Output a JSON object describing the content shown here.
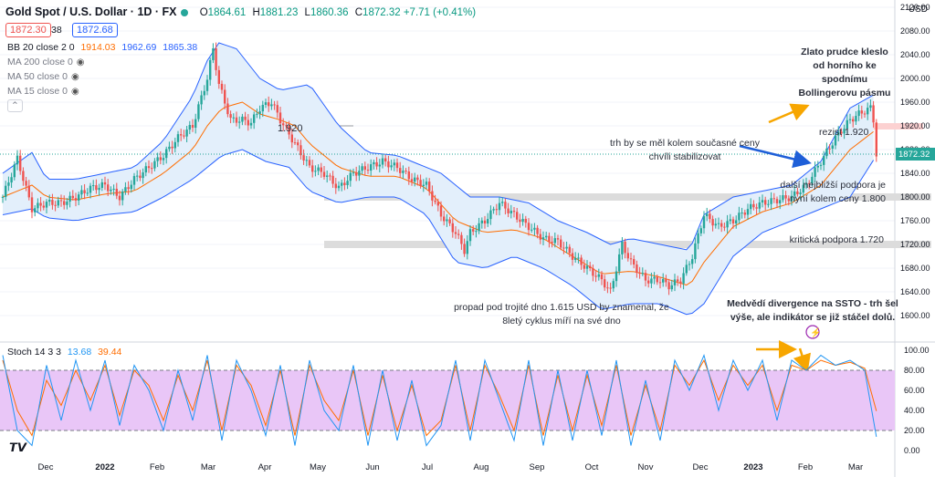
{
  "header": {
    "symbol": "Gold Spot / U.S. Dollar · 1D · FX",
    "o_label": "O",
    "o_value": "1864.61",
    "h_label": "H",
    "h_value": "1881.23",
    "l_label": "L",
    "l_value": "1860.36",
    "c_label": "C",
    "c_value": "1872.32",
    "change": "+7.71 (+0.41%)",
    "bid": "1872.30",
    "spread": "38",
    "ask": "1872.68",
    "currency": "USD"
  },
  "indicators": {
    "bb_label": "BB 20 close 2 0",
    "bb_basis": "1914.03",
    "bb_upper": "1962.69",
    "bb_lower": "1865.38",
    "ma200": "MA 200 close 0",
    "ma50": "MA 50 close 0",
    "ma15": "MA 15 close 0",
    "stoch_label": "Stoch 14 3 3",
    "stoch_k": "13.68",
    "stoch_d": "39.44"
  },
  "annotations": {
    "top_right": [
      "Zlato prudce kleslo",
      "od horního ke",
      "spodnímu",
      "Bollingerovu pásmu"
    ],
    "resistance": "rezist 1.920",
    "stabilize": [
      "trh by se měl kolem současné ceny",
      "chvíli stabilizovat"
    ],
    "next_support": [
      "další nejbližší podpora je",
      "nyní kolem ceny 1.800"
    ],
    "critical_support": "kritická podpora 1.720",
    "triple_bottom": [
      "propad pod trojité dno 1.615 USD by znamenal, že",
      "8letý cyklus míří na své dno"
    ],
    "divergence": [
      "Medvědí divergence na SSTO - trh šel",
      "výše, ale indikátor se již stáčel dolů."
    ],
    "level_1920": "1.920"
  },
  "colors": {
    "up": "#26a69a",
    "down": "#ef5350",
    "bb_band": "#2962ff",
    "bb_basis": "#ff6d00",
    "bb_fill": "#e3effb",
    "stoch_k": "#2196f3",
    "stoch_d": "#ff6d00",
    "stoch_fill": "#e9c6f7",
    "zone": "#dcdcdc",
    "resist_zone": "#fcd1d1",
    "arrow_orange": "#f7a600",
    "arrow_blue": "#1e5fd8"
  },
  "chart_data": {
    "type": "candlestick",
    "ylim": [
      1560,
      2120
    ],
    "yticks": [
      2120,
      2080,
      2040,
      2000,
      1960,
      1920,
      1880,
      1840,
      1800,
      1760,
      1720,
      1680,
      1640,
      1600
    ],
    "ytick_labels": [
      "2120.00",
      "2080.00",
      "2040.00",
      "2000.00",
      "1960.00",
      "1920.00",
      "1880.00",
      "1840.00",
      "1800.00",
      "1760.00",
      "1720.00",
      "1680.00",
      "1640.00",
      "1600.00"
    ],
    "x_labels": [
      "Dec",
      "2022",
      "Feb",
      "Mar",
      "Apr",
      "May",
      "Jun",
      "Jul",
      "Aug",
      "Sep",
      "Oct",
      "Nov",
      "Dec",
      "2023",
      "Feb",
      "Mar"
    ],
    "x_label_bold": [
      "2022",
      "2023"
    ],
    "last_price": 1872.32,
    "last_price_label": "1872.32",
    "close_path": [
      [
        0,
        1800
      ],
      [
        5,
        1865
      ],
      [
        10,
        1780
      ],
      [
        15,
        1790
      ],
      [
        20,
        1790
      ],
      [
        25,
        1800
      ],
      [
        30,
        1815
      ],
      [
        35,
        1820
      ],
      [
        40,
        1800
      ],
      [
        45,
        1830
      ],
      [
        50,
        1850
      ],
      [
        55,
        1870
      ],
      [
        60,
        1900
      ],
      [
        65,
        1920
      ],
      [
        70,
        2000
      ],
      [
        72,
        2050
      ],
      [
        74,
        1990
      ],
      [
        78,
        1930
      ],
      [
        82,
        1930
      ],
      [
        85,
        1925
      ],
      [
        88,
        1950
      ],
      [
        92,
        1960
      ],
      [
        95,
        1930
      ],
      [
        100,
        1890
      ],
      [
        105,
        1850
      ],
      [
        110,
        1840
      ],
      [
        115,
        1815
      ],
      [
        120,
        1840
      ],
      [
        125,
        1850
      ],
      [
        130,
        1860
      ],
      [
        135,
        1850
      ],
      [
        140,
        1830
      ],
      [
        145,
        1820
      ],
      [
        150,
        1770
      ],
      [
        155,
        1740
      ],
      [
        158,
        1710
      ],
      [
        160,
        1740
      ],
      [
        165,
        1760
      ],
      [
        170,
        1790
      ],
      [
        175,
        1770
      ],
      [
        180,
        1750
      ],
      [
        185,
        1730
      ],
      [
        190,
        1725
      ],
      [
        195,
        1700
      ],
      [
        200,
        1680
      ],
      [
        205,
        1660
      ],
      [
        208,
        1640
      ],
      [
        212,
        1720
      ],
      [
        215,
        1690
      ],
      [
        220,
        1660
      ],
      [
        225,
        1660
      ],
      [
        228,
        1650
      ],
      [
        232,
        1660
      ],
      [
        236,
        1700
      ],
      [
        240,
        1770
      ],
      [
        245,
        1750
      ],
      [
        250,
        1760
      ],
      [
        255,
        1780
      ],
      [
        260,
        1790
      ],
      [
        265,
        1795
      ],
      [
        270,
        1800
      ],
      [
        275,
        1820
      ],
      [
        280,
        1860
      ],
      [
        285,
        1900
      ],
      [
        290,
        1930
      ],
      [
        293,
        1940
      ],
      [
        295,
        1945
      ],
      [
        297,
        1950
      ],
      [
        298,
        1930
      ],
      [
        299,
        1872
      ]
    ],
    "bb_upper_path": [
      [
        0,
        1840
      ],
      [
        10,
        1875
      ],
      [
        15,
        1830
      ],
      [
        25,
        1830
      ],
      [
        35,
        1840
      ],
      [
        45,
        1850
      ],
      [
        55,
        1895
      ],
      [
        65,
        1970
      ],
      [
        70,
        2030
      ],
      [
        74,
        2060
      ],
      [
        80,
        2050
      ],
      [
        88,
        2000
      ],
      [
        95,
        1980
      ],
      [
        105,
        1990
      ],
      [
        115,
        1920
      ],
      [
        125,
        1875
      ],
      [
        135,
        1870
      ],
      [
        145,
        1850
      ],
      [
        150,
        1840
      ],
      [
        160,
        1800
      ],
      [
        170,
        1800
      ],
      [
        180,
        1790
      ],
      [
        190,
        1760
      ],
      [
        200,
        1740
      ],
      [
        208,
        1720
      ],
      [
        215,
        1730
      ],
      [
        225,
        1720
      ],
      [
        235,
        1710
      ],
      [
        240,
        1770
      ],
      [
        250,
        1800
      ],
      [
        260,
        1810
      ],
      [
        270,
        1820
      ],
      [
        280,
        1860
      ],
      [
        290,
        1950
      ],
      [
        299,
        1975
      ]
    ],
    "bb_lower_path": [
      [
        0,
        1770
      ],
      [
        10,
        1780
      ],
      [
        15,
        1765
      ],
      [
        25,
        1760
      ],
      [
        35,
        1770
      ],
      [
        45,
        1775
      ],
      [
        55,
        1800
      ],
      [
        65,
        1830
      ],
      [
        70,
        1850
      ],
      [
        75,
        1870
      ],
      [
        82,
        1880
      ],
      [
        90,
        1860
      ],
      [
        98,
        1850
      ],
      [
        105,
        1810
      ],
      [
        115,
        1790
      ],
      [
        125,
        1800
      ],
      [
        135,
        1800
      ],
      [
        145,
        1770
      ],
      [
        155,
        1690
      ],
      [
        165,
        1680
      ],
      [
        175,
        1700
      ],
      [
        185,
        1680
      ],
      [
        195,
        1650
      ],
      [
        205,
        1610
      ],
      [
        215,
        1620
      ],
      [
        225,
        1620
      ],
      [
        235,
        1600
      ],
      [
        240,
        1620
      ],
      [
        250,
        1700
      ],
      [
        260,
        1740
      ],
      [
        270,
        1760
      ],
      [
        280,
        1780
      ],
      [
        290,
        1800
      ],
      [
        299,
        1870
      ]
    ],
    "bb_basis_path": [
      [
        0,
        1800
      ],
      [
        10,
        1820
      ],
      [
        15,
        1800
      ],
      [
        25,
        1795
      ],
      [
        35,
        1805
      ],
      [
        45,
        1810
      ],
      [
        55,
        1840
      ],
      [
        65,
        1880
      ],
      [
        70,
        1920
      ],
      [
        75,
        1950
      ],
      [
        82,
        1960
      ],
      [
        88,
        1940
      ],
      [
        95,
        1930
      ],
      [
        100,
        1920
      ],
      [
        105,
        1890
      ],
      [
        115,
        1850
      ],
      [
        125,
        1835
      ],
      [
        135,
        1835
      ],
      [
        145,
        1815
      ],
      [
        155,
        1760
      ],
      [
        165,
        1740
      ],
      [
        175,
        1745
      ],
      [
        185,
        1730
      ],
      [
        195,
        1700
      ],
      [
        205,
        1670
      ],
      [
        215,
        1675
      ],
      [
        225,
        1665
      ],
      [
        235,
        1650
      ],
      [
        240,
        1690
      ],
      [
        250,
        1750
      ],
      [
        260,
        1775
      ],
      [
        270,
        1790
      ],
      [
        280,
        1820
      ],
      [
        290,
        1880
      ],
      [
        299,
        1914
      ]
    ],
    "stoch_k_path": [
      [
        0,
        95
      ],
      [
        5,
        20
      ],
      [
        10,
        5
      ],
      [
        15,
        85
      ],
      [
        20,
        30
      ],
      [
        25,
        90
      ],
      [
        30,
        40
      ],
      [
        35,
        90
      ],
      [
        40,
        25
      ],
      [
        45,
        85
      ],
      [
        50,
        60
      ],
      [
        55,
        20
      ],
      [
        60,
        80
      ],
      [
        65,
        30
      ],
      [
        70,
        95
      ],
      [
        75,
        10
      ],
      [
        80,
        90
      ],
      [
        85,
        60
      ],
      [
        90,
        15
      ],
      [
        95,
        85
      ],
      [
        100,
        5
      ],
      [
        105,
        90
      ],
      [
        110,
        40
      ],
      [
        115,
        20
      ],
      [
        120,
        85
      ],
      [
        125,
        5
      ],
      [
        130,
        80
      ],
      [
        135,
        10
      ],
      [
        140,
        70
      ],
      [
        145,
        5
      ],
      [
        150,
        25
      ],
      [
        155,
        90
      ],
      [
        160,
        10
      ],
      [
        165,
        90
      ],
      [
        170,
        50
      ],
      [
        175,
        10
      ],
      [
        180,
        90
      ],
      [
        185,
        5
      ],
      [
        190,
        80
      ],
      [
        195,
        10
      ],
      [
        200,
        80
      ],
      [
        205,
        15
      ],
      [
        210,
        90
      ],
      [
        215,
        5
      ],
      [
        220,
        70
      ],
      [
        225,
        10
      ],
      [
        230,
        90
      ],
      [
        235,
        60
      ],
      [
        240,
        95
      ],
      [
        245,
        40
      ],
      [
        250,
        90
      ],
      [
        255,
        60
      ],
      [
        260,
        90
      ],
      [
        265,
        30
      ],
      [
        270,
        90
      ],
      [
        275,
        80
      ],
      [
        280,
        95
      ],
      [
        285,
        85
      ],
      [
        290,
        90
      ],
      [
        295,
        80
      ],
      [
        299,
        13.68
      ]
    ],
    "stoch_d_path": [
      [
        0,
        90
      ],
      [
        5,
        40
      ],
      [
        10,
        15
      ],
      [
        15,
        70
      ],
      [
        20,
        45
      ],
      [
        25,
        80
      ],
      [
        30,
        50
      ],
      [
        35,
        85
      ],
      [
        40,
        35
      ],
      [
        45,
        80
      ],
      [
        50,
        65
      ],
      [
        55,
        30
      ],
      [
        60,
        75
      ],
      [
        65,
        40
      ],
      [
        70,
        90
      ],
      [
        75,
        20
      ],
      [
        80,
        85
      ],
      [
        85,
        65
      ],
      [
        90,
        25
      ],
      [
        95,
        80
      ],
      [
        100,
        15
      ],
      [
        105,
        85
      ],
      [
        110,
        50
      ],
      [
        115,
        30
      ],
      [
        120,
        80
      ],
      [
        125,
        15
      ],
      [
        130,
        75
      ],
      [
        135,
        20
      ],
      [
        140,
        65
      ],
      [
        145,
        15
      ],
      [
        150,
        30
      ],
      [
        155,
        85
      ],
      [
        160,
        20
      ],
      [
        165,
        85
      ],
      [
        170,
        55
      ],
      [
        175,
        20
      ],
      [
        180,
        85
      ],
      [
        185,
        15
      ],
      [
        190,
        75
      ],
      [
        195,
        20
      ],
      [
        200,
        75
      ],
      [
        205,
        25
      ],
      [
        210,
        85
      ],
      [
        215,
        15
      ],
      [
        220,
        65
      ],
      [
        225,
        20
      ],
      [
        230,
        85
      ],
      [
        235,
        65
      ],
      [
        240,
        90
      ],
      [
        245,
        50
      ],
      [
        250,
        85
      ],
      [
        255,
        65
      ],
      [
        260,
        85
      ],
      [
        265,
        40
      ],
      [
        270,
        85
      ],
      [
        275,
        80
      ],
      [
        280,
        90
      ],
      [
        285,
        85
      ],
      [
        290,
        88
      ],
      [
        295,
        82
      ],
      [
        299,
        39.44
      ]
    ],
    "stoch_ylim": [
      0,
      100
    ],
    "stoch_yticks": [
      100,
      80,
      60,
      40,
      20,
      0
    ],
    "stoch_ytick_labels": [
      "100.00",
      "80.00",
      "60.00",
      "40.00",
      "20.00",
      "0.00"
    ],
    "stoch_bands": [
      80,
      20
    ],
    "zones": [
      {
        "price": 1800,
        "label": "next_support"
      },
      {
        "price": 1720,
        "label": "critical_support"
      }
    ],
    "resistance_level": 1920
  }
}
